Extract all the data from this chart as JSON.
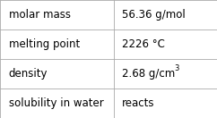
{
  "rows": [
    {
      "label": "molar mass",
      "value": "56.36 g/mol",
      "has_superscript": false,
      "value_base": "",
      "value_super": ""
    },
    {
      "label": "melting point",
      "value": "2226 °C",
      "has_superscript": false,
      "value_base": "",
      "value_super": ""
    },
    {
      "label": "density",
      "value": "2.68 g/cm",
      "has_superscript": true,
      "value_base": "2.68 g/cm",
      "value_super": "3"
    },
    {
      "label": "solubility in water",
      "value": "reacts",
      "has_superscript": false,
      "value_base": "",
      "value_super": ""
    }
  ],
  "col_split": 0.525,
  "background_color": "#ffffff",
  "border_color": "#aaaaaa",
  "text_color": "#000000",
  "label_font_size": 8.5,
  "value_font_size": 8.5,
  "super_font_size": 6.0,
  "fig_width": 2.42,
  "fig_height": 1.32,
  "dpi": 100
}
